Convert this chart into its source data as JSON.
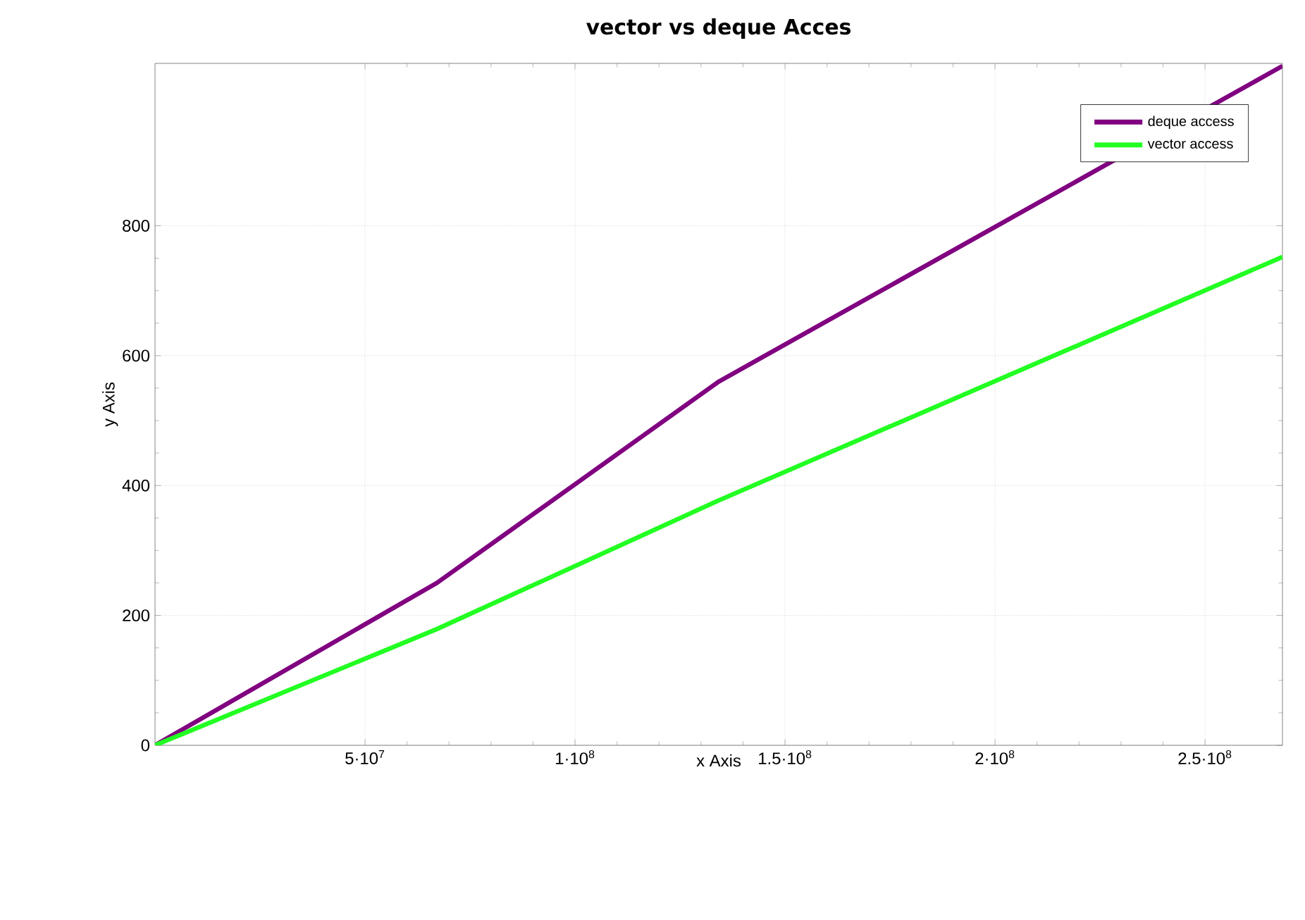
{
  "chart_data": {
    "type": "line",
    "title": "vector vs deque Acces",
    "xlabel": "x Axis",
    "ylabel": "y Axis",
    "x": [
      0,
      67108864,
      134217728,
      268435456
    ],
    "series": [
      {
        "name": "deque access",
        "color": "#800080",
        "values": [
          0,
          250,
          560,
          1046
        ]
      },
      {
        "name": "vector access",
        "color": "#22ff22",
        "values": [
          0,
          179,
          377,
          752
        ]
      }
    ],
    "xlim": [
      0,
      268435456
    ],
    "ylim": [
      0,
      1050
    ],
    "xticks": [
      {
        "value": 50000000,
        "label": "5·10$^{7}$"
      },
      {
        "value": 100000000,
        "label": "1·10$^{8}$"
      },
      {
        "value": 150000000,
        "label": "1.5·10$^{8}$"
      },
      {
        "value": 200000000,
        "label": "2·10$^{8}$"
      },
      {
        "value": 250000000,
        "label": "2.5·10$^{8}$"
      }
    ],
    "yticks": [
      0,
      200,
      400,
      600,
      800
    ],
    "grid": true,
    "legend": "top right",
    "marker": "none",
    "line_style": "solid"
  }
}
